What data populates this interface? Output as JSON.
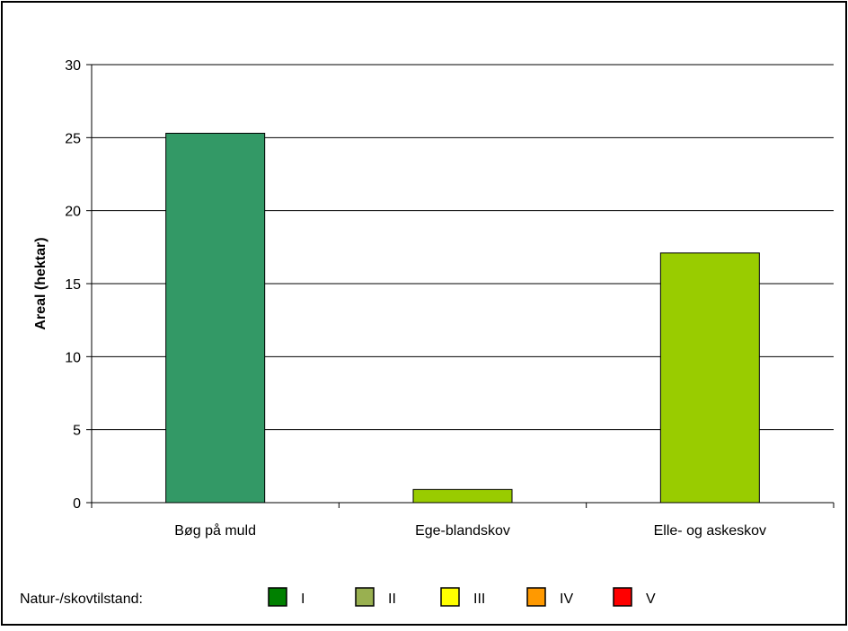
{
  "chart_data": {
    "type": "bar",
    "title": "",
    "xlabel": "",
    "ylabel": "Areal (hektar)",
    "ylim": [
      0,
      30
    ],
    "yticks": [
      0,
      5,
      10,
      15,
      20,
      25,
      30
    ],
    "grid": true,
    "legend_position": "bottom",
    "categories": [
      "Bøg på muld",
      "Ege-blandskov",
      "Elle- og askeskov"
    ],
    "values": [
      25.3,
      0.9,
      17.1
    ],
    "bar_colors": [
      "#339966",
      "#99cc00",
      "#99cc00"
    ]
  },
  "legend": {
    "title": "Natur-/skovtilstand:",
    "items": [
      {
        "label": "I",
        "color": "#008000"
      },
      {
        "label": "II",
        "color": "#99b050"
      },
      {
        "label": "III",
        "color": "#ffff00"
      },
      {
        "label": "IV",
        "color": "#ff9900"
      },
      {
        "label": "V",
        "color": "#ff0000"
      }
    ]
  }
}
